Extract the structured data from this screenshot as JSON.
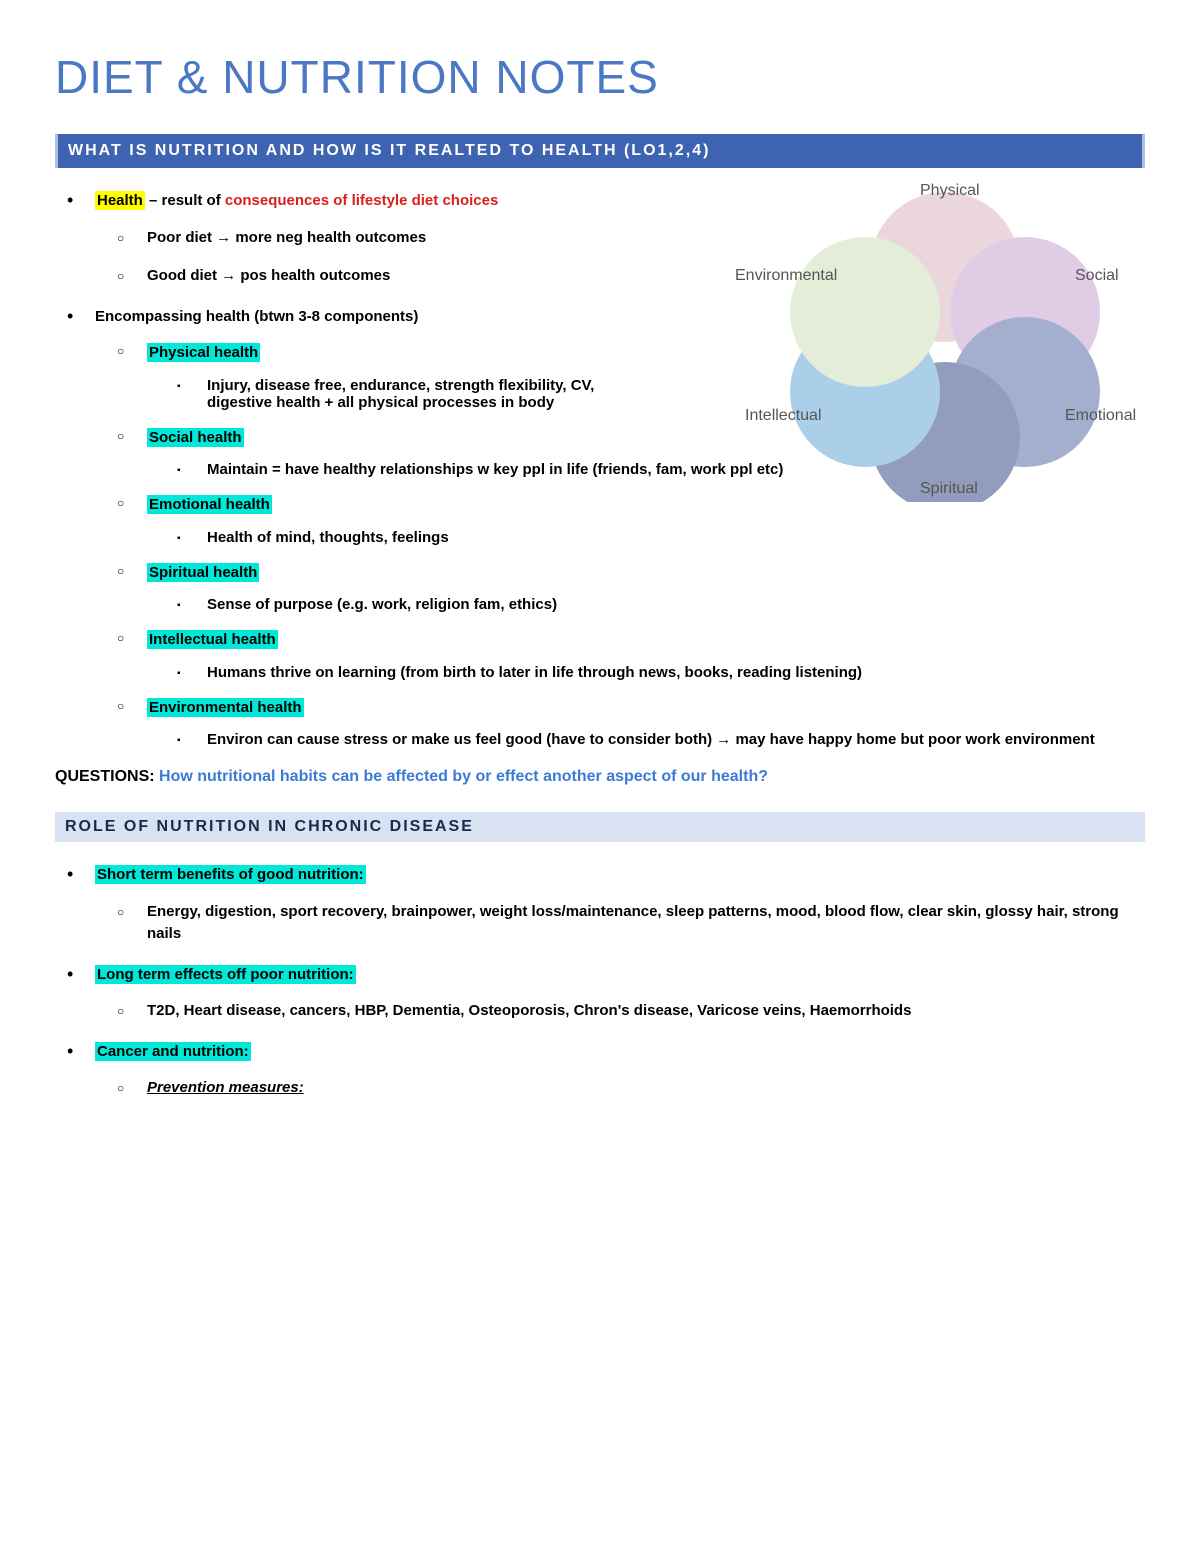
{
  "colors": {
    "title": "#4a78c5",
    "banner_bg": "#3e63b0",
    "banner_light_bg": "#d9e2f3",
    "hl_yellow": "#ffff00",
    "hl_cyan": "#00e8d8",
    "red": "#d8201c",
    "blue_question": "#3a7bd5",
    "venn": {
      "physical": "#d9b6bf",
      "social": "#c7a6d1",
      "emotional": "#5a6fa8",
      "spiritual": "#3a4e8a",
      "intellectual": "#6aa8d8",
      "environmental": "#cde0b8"
    }
  },
  "title": "DIET & NUTRITION NOTES",
  "section1": {
    "banner": "WHAT IS NUTRITION AND HOW IS IT REALTED TO HEALTH (LO1,2,4)",
    "health_label": "Health",
    "health_rest": " – result of ",
    "health_red": "consequences of lifestyle diet choices",
    "poor_diet": "Poor diet → more neg health outcomes",
    "good_diet": "Good diet → pos health outcomes",
    "encomp": "Encompassing health (btwn 3-8 components)",
    "components": [
      {
        "name": "Physical health",
        "desc": "Injury, disease free, endurance, strength flexibility, CV, digestive health + all physical processes in body"
      },
      {
        "name": "Social health",
        "desc": "Maintain = have healthy relationships w key ppl in life (friends, fam, work ppl etc)"
      },
      {
        "name": "Emotional health",
        "desc": "Health of mind, thoughts, feelings"
      },
      {
        "name": "Spiritual health",
        "desc": "Sense of purpose (e.g. work, religion fam, ethics)"
      },
      {
        "name": "Intellectual health",
        "desc": "Humans thrive on learning (from birth to later in life through news, books, reading listening)"
      },
      {
        "name": "Environmental health",
        "desc": "Environ can cause stress or make us feel good (have to consider both) → may have happy home but poor work environment"
      }
    ],
    "venn_labels": {
      "physical": "Physical",
      "social": "Social",
      "emotional": "Emotional",
      "spiritual": "Spiritual",
      "intellectual": "Intellectual",
      "environmental": "Environmental"
    }
  },
  "questions_label": "QUESTIONS:  ",
  "questions_text": "How nutritional habits can be affected by or effect another aspect of our health?",
  "section2": {
    "banner": "ROLE OF NUTRITION IN CHRONIC DISEASE",
    "items": [
      {
        "name": "Short term benefits of good nutrition:",
        "desc": "Energy, digestion, sport recovery, brainpower, weight loss/maintenance, sleep patterns, mood, blood flow, clear skin, glossy hair, strong nails"
      },
      {
        "name": "Long term effects off poor nutrition:",
        "desc": "T2D, Heart disease, cancers, HBP, Dementia, Osteoporosis, Chron's disease, Varicose veins, Haemorrhoids"
      },
      {
        "name": "Cancer and nutrition:",
        "desc_ital": "Prevention measures:"
      }
    ]
  }
}
